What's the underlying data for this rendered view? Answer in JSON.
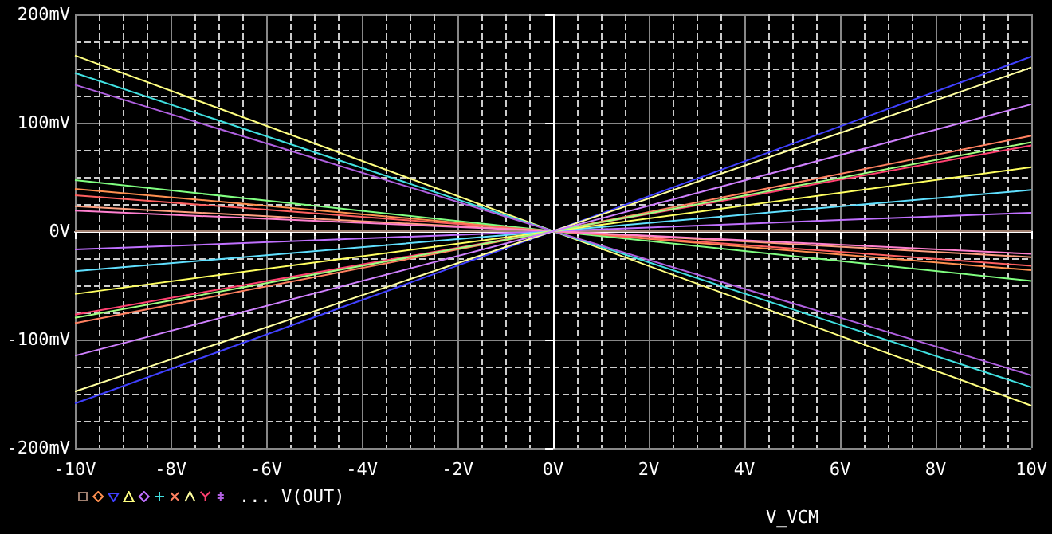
{
  "chart_data": {
    "type": "line",
    "xlabel": "V_VCM",
    "annotations": [
      "... V(OUT)"
    ],
    "x": [
      -10,
      0,
      10
    ],
    "xlim": [
      -10,
      10
    ],
    "xticks": [
      {
        "value": -10,
        "label": "-10V"
      },
      {
        "value": -8,
        "label": "-8V"
      },
      {
        "value": -6,
        "label": "-6V"
      },
      {
        "value": -4,
        "label": "-4V"
      },
      {
        "value": -2,
        "label": "-2V"
      },
      {
        "value": 0,
        "label": "0V"
      },
      {
        "value": 2,
        "label": "2V"
      },
      {
        "value": 4,
        "label": "4V"
      },
      {
        "value": 6,
        "label": "6V"
      },
      {
        "value": 8,
        "label": "8V"
      },
      {
        "value": 10,
        "label": "10V"
      }
    ],
    "ylim": [
      -200,
      200
    ],
    "yticks": [
      {
        "value": -200,
        "label": "-200mV"
      },
      {
        "value": -100,
        "label": "-100mV"
      },
      {
        "value": 0,
        "label": "0V"
      },
      {
        "value": 100,
        "label": "100mV"
      },
      {
        "value": 200,
        "label": "200mV"
      }
    ],
    "grid": true,
    "marker": "none",
    "line_style": "solid",
    "series": [
      {
        "color": "#a08070",
        "values": [
          0,
          0,
          0
        ]
      },
      {
        "color": "#ff9050",
        "values": [
          39,
          0,
          -36
        ]
      },
      {
        "color": "#4040ff",
        "values": [
          -159,
          0,
          161
        ]
      },
      {
        "color": "#ffff80",
        "values": [
          162,
          0,
          -161
        ]
      },
      {
        "color": "#c070ff",
        "values": [
          -17,
          0,
          17
        ]
      },
      {
        "color": "#40e0e0",
        "values": [
          146,
          0,
          -144
        ]
      },
      {
        "color": "#ff8060",
        "values": [
          -85,
          0,
          88
        ]
      },
      {
        "color": "#ffffa0",
        "values": [
          -148,
          0,
          151
        ]
      },
      {
        "color": "#ff4070",
        "values": [
          -77,
          0,
          79
        ]
      },
      {
        "color": "#b060e0",
        "values": [
          135,
          0,
          -133
        ]
      },
      {
        "color": "#80ff80",
        "values": [
          47,
          0,
          -46
        ]
      },
      {
        "color": "#ff6060",
        "values": [
          33,
          0,
          -32
        ]
      },
      {
        "color": "#ffa080",
        "values": [
          23,
          0,
          -24
        ]
      },
      {
        "color": "#ff80d0",
        "values": [
          19,
          0,
          -21
        ]
      },
      {
        "color": "#60e0ff",
        "values": [
          -37,
          0,
          38
        ]
      },
      {
        "color": "#ffff60",
        "values": [
          -58,
          0,
          59
        ]
      },
      {
        "color": "#a0ff80",
        "values": [
          -80,
          0,
          82
        ]
      },
      {
        "color": "#d080ff",
        "values": [
          -115,
          0,
          117
        ]
      }
    ]
  }
}
